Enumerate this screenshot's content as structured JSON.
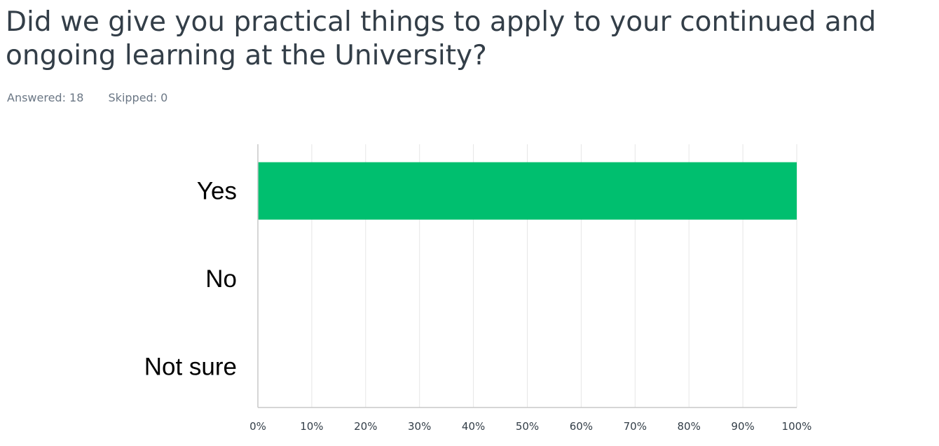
{
  "header": {
    "question": "Did we give you practical things to apply to your continued and ongoing learning at the University?",
    "answered": "Answered: 18",
    "skipped": "Skipped: 0"
  },
  "chart_data": {
    "type": "bar",
    "orientation": "horizontal",
    "categories": [
      "Yes",
      "No",
      "Not sure"
    ],
    "values": [
      100,
      0,
      0
    ],
    "unit": "%",
    "xlim": [
      0,
      100
    ],
    "ticks": [
      "0%",
      "10%",
      "20%",
      "30%",
      "40%",
      "50%",
      "60%",
      "70%",
      "80%",
      "90%",
      "100%"
    ],
    "grid": true,
    "bar_color": "#00bf6f",
    "grid_color": "#e6e6e6",
    "axis_color": "#c8c8c8"
  }
}
